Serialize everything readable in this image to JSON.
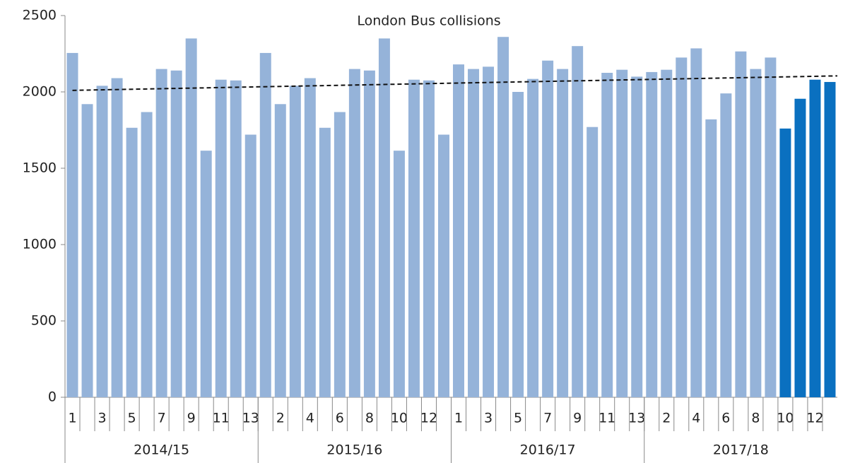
{
  "chart_data": {
    "type": "bar",
    "title": "London Bus collisions",
    "categories": [
      "1",
      null,
      "3",
      null,
      "5",
      null,
      "7",
      null,
      "9",
      null,
      "11",
      null,
      "13",
      null,
      "2",
      null,
      "4",
      null,
      "6",
      null,
      "8",
      null,
      "10",
      null,
      "12",
      null,
      "1",
      null,
      "3",
      null,
      "5",
      null,
      "7",
      null,
      "9",
      null,
      "11",
      null,
      "13",
      null,
      "2",
      null,
      "4",
      null,
      "6",
      null,
      "8",
      null,
      "10",
      null,
      "12",
      null
    ],
    "group_labels": [
      "2014/15",
      "2015/16",
      "2016/17",
      "2017/18"
    ],
    "values": [
      2255,
      1920,
      2040,
      2090,
      1765,
      1868,
      2150,
      2140,
      2350,
      1615,
      2080,
      2075,
      1720,
      2255,
      1920,
      2040,
      2090,
      1765,
      1868,
      2150,
      2140,
      2350,
      1615,
      2080,
      2075,
      1720,
      2180,
      2150,
      2165,
      2360,
      2000,
      2085,
      2205,
      2150,
      2300,
      1770,
      2125,
      2145,
      2100,
      2130,
      2145,
      2225,
      2285,
      1820,
      1990,
      2265,
      2150,
      2225,
      1760,
      1955,
      2080,
      2065
    ],
    "bar_colors": [
      "#95b3d9",
      "#95b3d9",
      "#95b3d9",
      "#95b3d9",
      "#95b3d9",
      "#95b3d9",
      "#95b3d9",
      "#95b3d9",
      "#95b3d9",
      "#95b3d9",
      "#95b3d9",
      "#95b3d9",
      "#95b3d9",
      "#95b3d9",
      "#95b3d9",
      "#95b3d9",
      "#95b3d9",
      "#95b3d9",
      "#95b3d9",
      "#95b3d9",
      "#95b3d9",
      "#95b3d9",
      "#95b3d9",
      "#95b3d9",
      "#95b3d9",
      "#95b3d9",
      "#95b3d9",
      "#95b3d9",
      "#95b3d9",
      "#95b3d9",
      "#95b3d9",
      "#95b3d9",
      "#95b3d9",
      "#95b3d9",
      "#95b3d9",
      "#95b3d9",
      "#95b3d9",
      "#95b3d9",
      "#95b3d9",
      "#95b3d9",
      "#95b3d9",
      "#95b3d9",
      "#95b3d9",
      "#95b3d9",
      "#95b3d9",
      "#95b3d9",
      "#95b3d9",
      "#95b3d9",
      "#0a70c0",
      "#0a70c0",
      "#0a70c0",
      "#0a70c0"
    ],
    "trendline": {
      "start": 2010,
      "end": 2105,
      "color": "#111"
    },
    "ylim": [
      0,
      2500
    ],
    "yticks": [
      0,
      500,
      1000,
      1500,
      2000,
      2500
    ],
    "grid": false
  }
}
